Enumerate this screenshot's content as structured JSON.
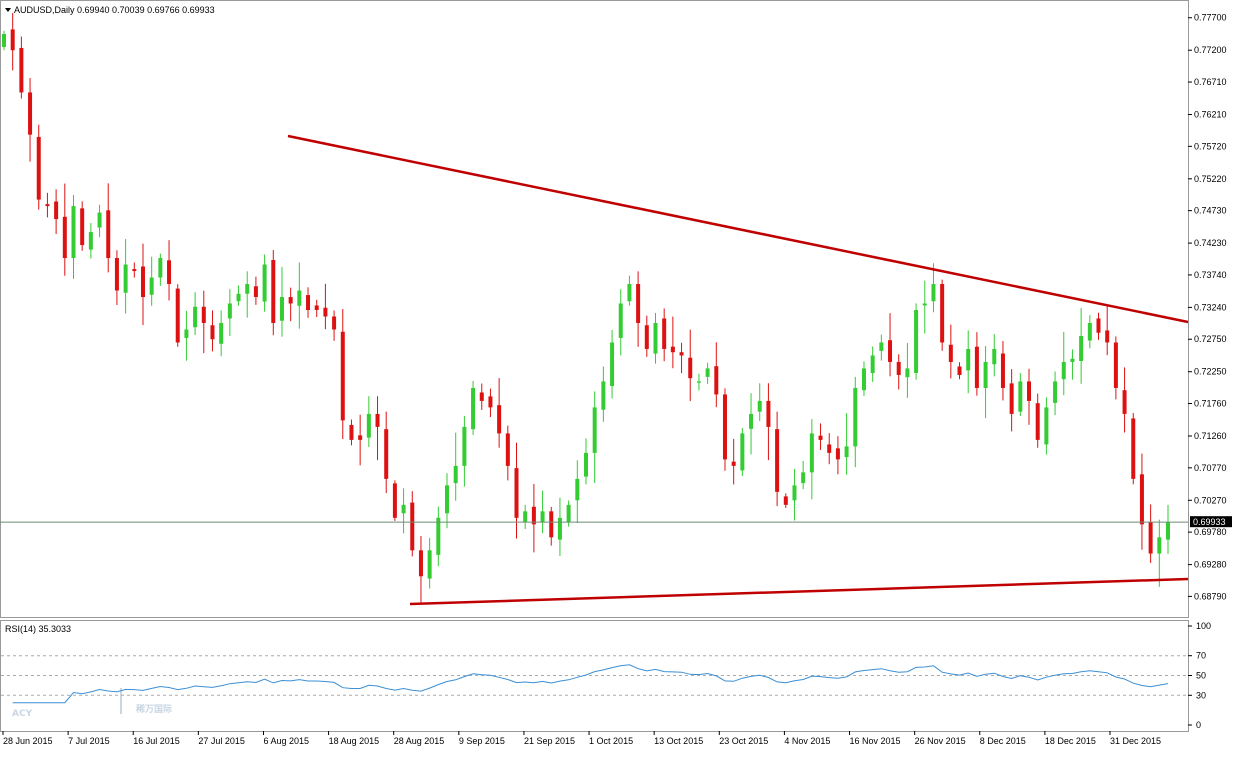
{
  "header": {
    "symbol_line": "AUDUSD,Daily  0.69940 0.70039 0.69766 0.69933",
    "current_price": "0.69933"
  },
  "rsi_header": "RSI(14) 35.3033",
  "watermark": {
    "latin": "ACY",
    "chinese": "稀万国际"
  },
  "colors": {
    "bull": "#33cc33",
    "bear": "#dd1111",
    "trendline": "#c00000",
    "rsi_line": "#3b8fd6",
    "grid": "#c8c8c8"
  },
  "chart_data": [
    {
      "type": "candlestick",
      "symbol": "AUDUSD",
      "timeframe": "Daily",
      "ohlc_header": {
        "open": 0.6994,
        "high": 0.70039,
        "low": 0.69766,
        "close": 0.69933
      },
      "ylim": [
        0.6855,
        0.7785
      ],
      "y_ticks": [
        "0.77700",
        "0.77200",
        "0.76710",
        "0.76210",
        "0.75720",
        "0.75220",
        "0.74730",
        "0.74230",
        "0.73740",
        "0.73240",
        "0.72750",
        "0.72250",
        "0.71760",
        "0.71260",
        "0.70770",
        "0.70270",
        "0.69780",
        "0.69280",
        "0.68790"
      ],
      "x_tick_labels": [
        "28 Jun 2015",
        "7 Jul 2015",
        "16 Jul 2015",
        "27 Jul 2015",
        "6 Aug 2015",
        "18 Aug 2015",
        "28 Aug 2015",
        "9 Sep 2015",
        "21 Sep 2015",
        "1 Oct 2015",
        "13 Oct 2015",
        "23 Oct 2015",
        "4 Nov 2015",
        "16 Nov 2015",
        "26 Nov 2015",
        "8 Dec 2015",
        "18 Dec 2015",
        "31 Dec 2015"
      ],
      "closes": [
        0.7745,
        0.772,
        0.7655,
        0.759,
        0.749,
        0.748,
        0.746,
        0.74,
        0.748,
        0.742,
        0.744,
        0.747,
        0.74,
        0.735,
        0.739,
        0.738,
        0.734,
        0.737,
        0.74,
        0.736,
        0.727,
        0.729,
        0.7325,
        0.73,
        0.7275,
        0.73,
        0.733,
        0.7345,
        0.736,
        0.734,
        0.739,
        0.73,
        0.734,
        0.733,
        0.735,
        0.732,
        0.732,
        0.731,
        0.729,
        0.715,
        0.712,
        0.712,
        0.716,
        0.714,
        0.706,
        0.7,
        0.702,
        0.695,
        0.691,
        0.695,
        0.7,
        0.705,
        0.708,
        0.714,
        0.72,
        0.718,
        0.717,
        0.713,
        0.708,
        0.7,
        0.701,
        0.699,
        0.701,
        0.697,
        0.7,
        0.702,
        0.706,
        0.71,
        0.717,
        0.721,
        0.727,
        0.733,
        0.736,
        0.73,
        0.726,
        0.73,
        0.726,
        0.7255,
        0.725,
        0.7215,
        0.721,
        0.723,
        0.719,
        0.709,
        0.708,
        0.713,
        0.716,
        0.718,
        0.714,
        0.704,
        0.702,
        0.705,
        0.707,
        0.713,
        0.712,
        0.71,
        0.709,
        0.711,
        0.72,
        0.723,
        0.725,
        0.727,
        0.724,
        0.722,
        0.723,
        0.732,
        0.733,
        0.736,
        0.727,
        0.724,
        0.722,
        0.726,
        0.72,
        0.724,
        0.726,
        0.72,
        0.716,
        0.721,
        0.718,
        0.712,
        0.717,
        0.721,
        0.724,
        0.7245,
        0.728,
        0.73,
        0.7285,
        0.727,
        0.72,
        0.716,
        0.706,
        0.699,
        0.6945,
        0.697,
        0.6993
      ]
    },
    {
      "type": "line",
      "indicator": "RSI(14)",
      "current_value": 35.3033,
      "ylim": [
        0,
        100
      ],
      "y_ticks": [
        "100",
        "70",
        "50",
        "30",
        "0"
      ],
      "levels": [
        70,
        50,
        30
      ]
    }
  ]
}
